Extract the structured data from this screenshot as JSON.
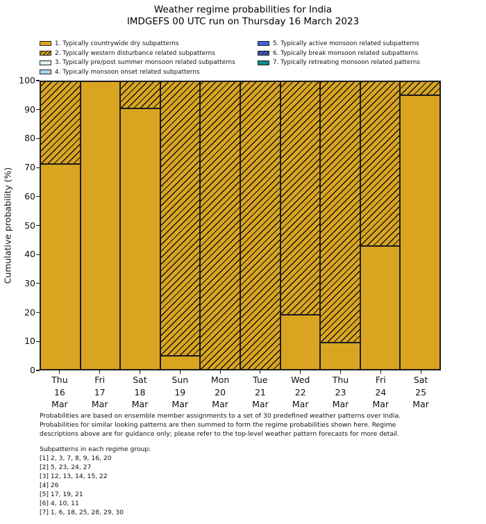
{
  "title": "Weather regime probabilities for India",
  "subtitle": "IMDGEFS 00 UTC run on Thursday 16 March 2023",
  "colors": {
    "regime1_dry": "#D9A521",
    "regime2_western_disturbance": "#D9A521",
    "regime3_prepost_summer": "#DFF0F5",
    "regime4_monsoon_onset": "#A9D6E6",
    "regime5_active_monsoon": "#4164DD",
    "regime6_break_monsoon": "#4164DD",
    "regime7_retreating_monsoon": "#0E8A8A",
    "hatch_line": "#111111",
    "bar_edge": "#1b1b1b"
  },
  "legend": {
    "left_column": [
      {
        "label": "1. Typically countrywide dry subpatterns",
        "color": "#D9A521",
        "hatched": false
      },
      {
        "label": "2. Typically western disturbance related subpatterns",
        "color": "#D9A521",
        "hatched": true
      },
      {
        "label": "3. Typically pre/post summer monsoon related subpatterns",
        "color": "#DFF0F5",
        "hatched": false
      },
      {
        "label": "4. Typically monsoon onset related subpatterns",
        "color": "#A9D6E6",
        "hatched": false
      }
    ],
    "right_column": [
      {
        "label": "5. Typically active monsoon related subpatterns",
        "color": "#4164DD",
        "hatched": false
      },
      {
        "label": "6. Typically break monsoon related subpatterns",
        "color": "#4164DD",
        "hatched": true
      },
      {
        "label": "7. Typically retreating monsoon related patterns",
        "color": "#0E8A8A",
        "hatched": false
      }
    ]
  },
  "chart_data": {
    "type": "bar",
    "stacked": true,
    "title": "Weather regime probabilities for India",
    "subtitle": "IMDGEFS 00 UTC run on Thursday 16 March 2023",
    "ylabel": "Cumulative probability (%)",
    "ylim": [
      0,
      100
    ],
    "yticks": [
      0,
      10,
      20,
      30,
      40,
      50,
      60,
      70,
      80,
      90,
      100
    ],
    "grid": false,
    "legend_position": "above plot, two columns",
    "categories": [
      {
        "day": "Thu",
        "date": "16",
        "month": "Mar"
      },
      {
        "day": "Fri",
        "date": "17",
        "month": "Mar"
      },
      {
        "day": "Sat",
        "date": "18",
        "month": "Mar"
      },
      {
        "day": "Sun",
        "date": "19",
        "month": "Mar"
      },
      {
        "day": "Mon",
        "date": "20",
        "month": "Mar"
      },
      {
        "day": "Tue",
        "date": "21",
        "month": "Mar"
      },
      {
        "day": "Wed",
        "date": "22",
        "month": "Mar"
      },
      {
        "day": "Thu",
        "date": "23",
        "month": "Mar"
      },
      {
        "day": "Fri",
        "date": "24",
        "month": "Mar"
      },
      {
        "day": "Sat",
        "date": "25",
        "month": "Mar"
      }
    ],
    "series": [
      {
        "name": "1. Typically countrywide dry subpatterns",
        "color": "#D9A521",
        "hatched": false,
        "values": [
          71.4,
          100,
          90.5,
          4.8,
          0,
          0,
          19.0,
          9.5,
          42.9,
          95.2
        ]
      },
      {
        "name": "2. Typically western disturbance related subpatterns",
        "color": "#D9A521",
        "hatched": true,
        "values": [
          28.6,
          0,
          9.5,
          95.2,
          100,
          100,
          81.0,
          90.5,
          57.1,
          4.8
        ]
      }
    ]
  },
  "footnote": {
    "lines": [
      "Probabilities are based on ensemble member assignments to a set of 30 predefined weather patterns over India.",
      "Probabilities for similar looking patterns are then summed to form the regime probabilities shown here. Regime",
      "descriptions above are for guidance only; please refer to the top-level weather pattern forecasts for more detail."
    ]
  },
  "subpatterns": {
    "heading": "Subpatterns in each regime group:",
    "groups": [
      "[1] 2, 3, 7, 8, 9, 16, 20",
      "[2] 5, 23, 24, 27",
      "[3] 12, 13, 14, 15, 22",
      "[4] 26",
      "[5] 17, 19, 21",
      "[6] 4, 10, 11",
      "[7] 1, 6, 18, 25, 28, 29, 30"
    ]
  }
}
